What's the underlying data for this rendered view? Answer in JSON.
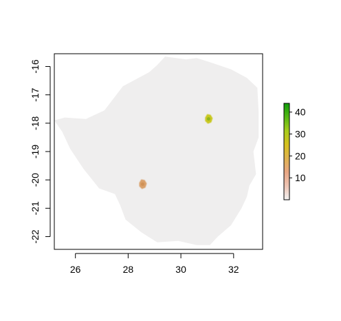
{
  "chart_data": {
    "type": "heatmap",
    "title": "",
    "xlabel": "",
    "ylabel": "",
    "xlim": [
      25.2,
      33.1
    ],
    "ylim": [
      -22.45,
      -15.55
    ],
    "x_ticks": [
      {
        "value": 26,
        "label": "26"
      },
      {
        "value": 28,
        "label": "28"
      },
      {
        "value": 30,
        "label": "30"
      },
      {
        "value": 32,
        "label": "32"
      }
    ],
    "y_ticks": [
      {
        "value": -16,
        "label": "-16"
      },
      {
        "value": -17,
        "label": "-17"
      },
      {
        "value": -18,
        "label": "-18"
      },
      {
        "value": -19,
        "label": "-19"
      },
      {
        "value": -20,
        "label": "-20"
      },
      {
        "value": -21,
        "label": "-21"
      },
      {
        "value": -22,
        "label": "-22"
      }
    ],
    "legend": {
      "placement": "right",
      "range": [
        0,
        44
      ],
      "ticks": [
        {
          "value": 10,
          "label": "10"
        },
        {
          "value": 20,
          "label": "20"
        },
        {
          "value": 30,
          "label": "30"
        },
        {
          "value": 40,
          "label": "40"
        }
      ],
      "colors": [
        "#f2f2f2",
        "#eec4b4",
        "#e8a684",
        "#dfb350",
        "#d6c11f",
        "#a8cc1c",
        "#56b813",
        "#0f9c0a"
      ]
    },
    "background_value_color": "#efeeee",
    "hotspots": [
      {
        "name": "north-east hotspot",
        "lon": 31.05,
        "lat": -17.85,
        "value": 30,
        "color": "#c9c823",
        "core_color": "#8fb61c"
      },
      {
        "name": "south-west hotspot",
        "lon": 28.55,
        "lat": -20.15,
        "value": 15,
        "color": "#d9a06a",
        "core_color": "#cf9055"
      }
    ],
    "outline": [
      [
        29.4,
        -15.65
      ],
      [
        30.2,
        -15.75
      ],
      [
        30.6,
        -15.7
      ],
      [
        31.1,
        -15.85
      ],
      [
        31.9,
        -16.1
      ],
      [
        32.5,
        -16.4
      ],
      [
        32.9,
        -16.75
      ],
      [
        32.95,
        -17.6
      ],
      [
        32.95,
        -18.5
      ],
      [
        32.75,
        -19.0
      ],
      [
        32.85,
        -19.8
      ],
      [
        32.6,
        -20.2
      ],
      [
        32.5,
        -20.6
      ],
      [
        32.3,
        -21.0
      ],
      [
        31.9,
        -21.6
      ],
      [
        31.4,
        -22.0
      ],
      [
        31.1,
        -22.3
      ],
      [
        30.6,
        -22.3
      ],
      [
        29.9,
        -22.15
      ],
      [
        29.1,
        -22.2
      ],
      [
        28.5,
        -21.85
      ],
      [
        27.9,
        -21.4
      ],
      [
        27.7,
        -20.9
      ],
      [
        27.5,
        -20.5
      ],
      [
        26.9,
        -20.3
      ],
      [
        26.3,
        -19.6
      ],
      [
        25.8,
        -18.9
      ],
      [
        25.5,
        -18.3
      ],
      [
        25.2,
        -17.9
      ],
      [
        25.6,
        -17.8
      ],
      [
        26.4,
        -17.85
      ],
      [
        27.1,
        -17.55
      ],
      [
        27.8,
        -16.7
      ],
      [
        28.8,
        -16.2
      ],
      [
        29.1,
        -15.95
      ]
    ]
  }
}
